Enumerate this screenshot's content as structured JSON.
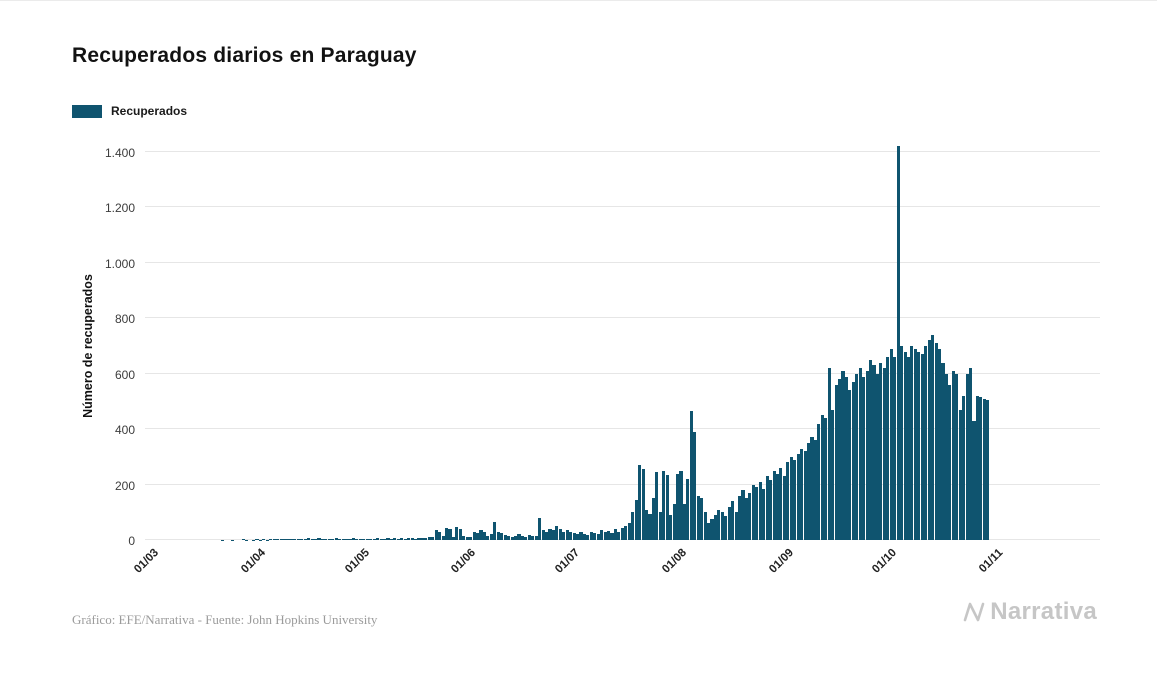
{
  "footer": {
    "caption": "Gráfico: EFE/Narrativa - Fuente: John Hopkins University",
    "logo_text": "Narrativa"
  },
  "colors": {
    "bar": "#0f546f",
    "gridline": "#e6e6e6",
    "axis_text": "#3c3c3c",
    "footer_text": "#9b9b9b",
    "logo": "#c6c6c6"
  },
  "chart_data": {
    "type": "bar",
    "title": "Recuperados diarios en Paraguay",
    "series_name": "Recuperados",
    "xlabel": "",
    "ylabel": "Número de recuperados",
    "ylim": [
      0,
      1400
    ],
    "grid": true,
    "legend_position": "top-left",
    "y_ticks": [
      "0",
      "200",
      "400",
      "600",
      "800",
      "1.000",
      "1.200",
      "1.400"
    ],
    "y_tick_values": [
      0,
      200,
      400,
      600,
      800,
      1000,
      1200,
      1400
    ],
    "x_ticks": [
      {
        "label": "01/03",
        "day": 0
      },
      {
        "label": "01/04",
        "day": 31
      },
      {
        "label": "01/05",
        "day": 61
      },
      {
        "label": "01/06",
        "day": 92
      },
      {
        "label": "01/07",
        "day": 122
      },
      {
        "label": "01/08",
        "day": 153
      },
      {
        "label": "01/09",
        "day": 184
      },
      {
        "label": "01/10",
        "day": 214
      },
      {
        "label": "01/11",
        "day": 245
      }
    ],
    "x_domain_days": 275,
    "start_date_label": "01/03",
    "values": [
      0,
      0,
      0,
      0,
      0,
      0,
      0,
      0,
      0,
      0,
      0,
      0,
      0,
      0,
      0,
      0,
      0,
      0,
      0,
      0,
      1,
      0,
      0,
      1,
      0,
      0,
      2,
      1,
      0,
      1,
      2,
      1,
      2,
      1,
      3,
      2,
      4,
      2,
      3,
      5,
      3,
      2,
      4,
      3,
      5,
      8,
      4,
      3,
      6,
      4,
      3,
      5,
      4,
      6,
      3,
      5,
      4,
      3,
      6,
      4,
      5,
      4,
      3,
      5,
      4,
      6,
      5,
      3,
      6,
      4,
      7,
      5,
      6,
      4,
      8,
      6,
      5,
      7,
      9,
      8,
      10,
      12,
      36,
      30,
      14,
      44,
      38,
      12,
      47,
      40,
      15,
      10,
      12,
      30,
      25,
      35,
      28,
      14,
      20,
      65,
      30,
      25,
      18,
      14,
      12,
      16,
      20,
      14,
      12,
      18,
      15,
      14,
      80,
      35,
      30,
      40,
      36,
      50,
      38,
      30,
      35,
      28,
      25,
      20,
      28,
      22,
      18,
      30,
      24,
      20,
      35,
      28,
      32,
      26,
      38,
      30,
      45,
      50,
      60,
      100,
      145,
      272,
      255,
      110,
      95,
      150,
      245,
      100,
      250,
      235,
      90,
      130,
      240,
      250,
      130,
      220,
      465,
      390,
      160,
      150,
      100,
      60,
      75,
      90,
      110,
      100,
      85,
      120,
      140,
      100,
      160,
      180,
      150,
      170,
      200,
      190,
      210,
      185,
      230,
      215,
      250,
      240,
      260,
      230,
      280,
      300,
      290,
      310,
      330,
      320,
      350,
      370,
      360,
      420,
      450,
      440,
      620,
      470,
      560,
      580,
      610,
      590,
      540,
      570,
      600,
      620,
      590,
      610,
      650,
      630,
      600,
      640,
      620,
      660,
      690,
      660,
      1420,
      700,
      680,
      660,
      700,
      690,
      680,
      670,
      700,
      720,
      740,
      710,
      690,
      640,
      600,
      560,
      610,
      600,
      470,
      520,
      600,
      620,
      430,
      520,
      515,
      510,
      505
    ]
  }
}
